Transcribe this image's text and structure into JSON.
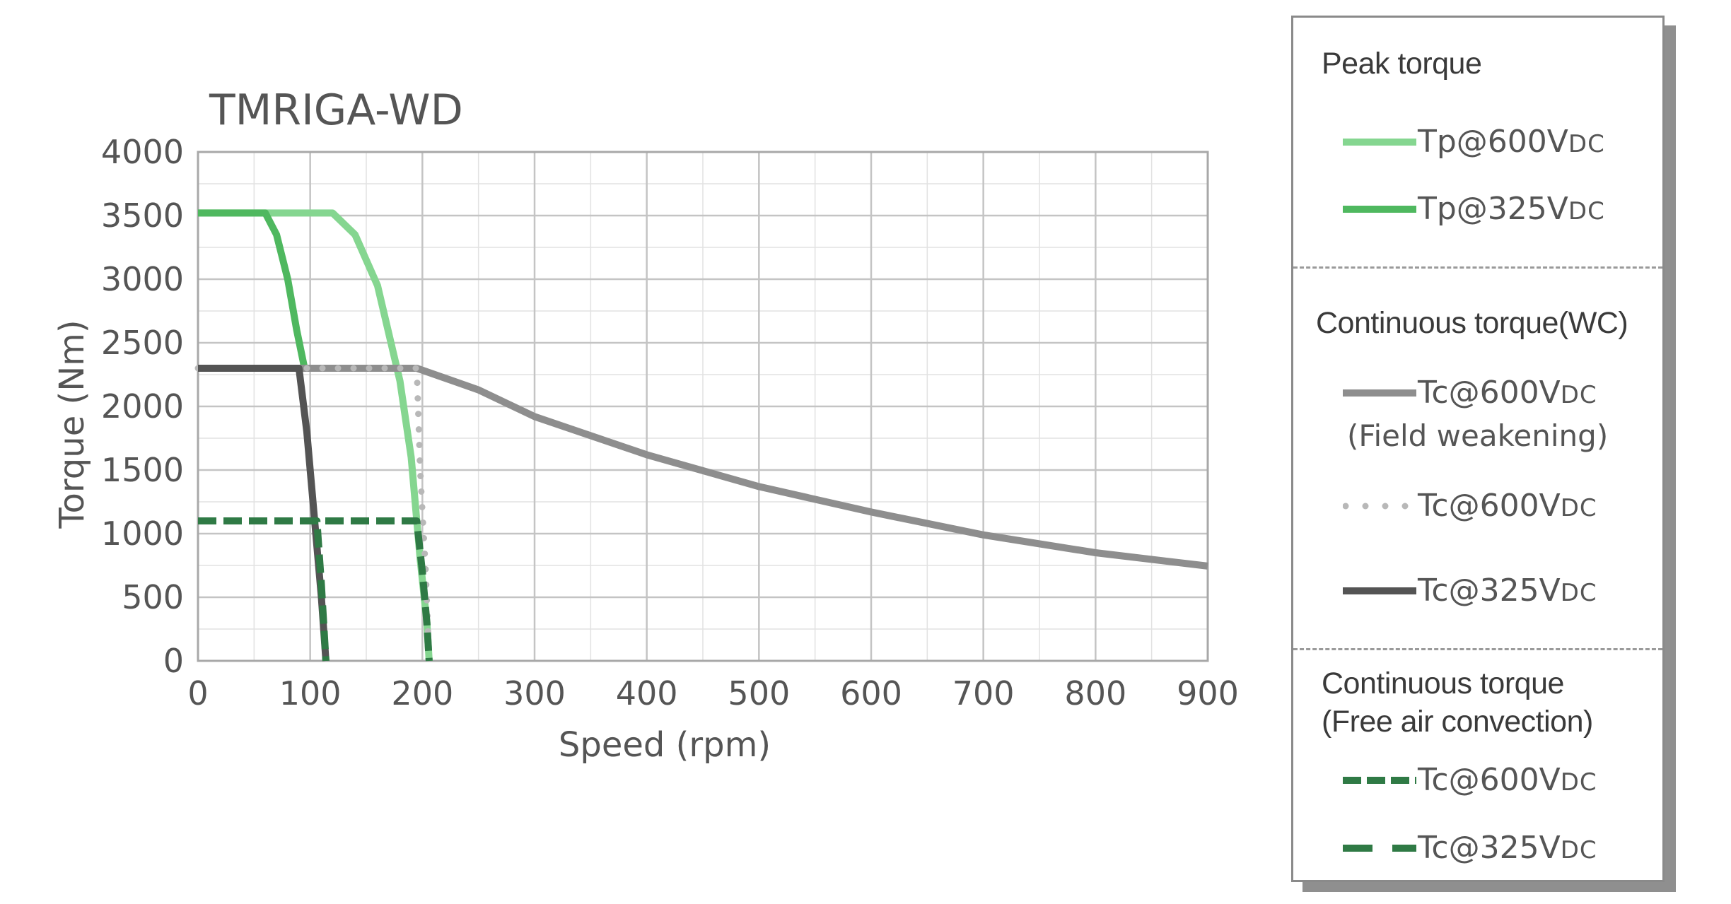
{
  "chart_data": {
    "type": "line",
    "title": "TMRIGA-WD",
    "xlabel": "Speed (rpm)",
    "ylabel": "Torque (Nm)",
    "xlim": [
      0,
      900
    ],
    "ylim": [
      0,
      4000
    ],
    "xticks": [
      0,
      100,
      200,
      300,
      400,
      500,
      600,
      700,
      800,
      900
    ],
    "yticks": [
      0,
      500,
      1000,
      1500,
      2000,
      2500,
      3000,
      3500,
      4000
    ],
    "grid": true,
    "legend_position": "right",
    "series": [
      {
        "id": "tp600",
        "color": "#85d690",
        "style": "solid",
        "points": [
          [
            0,
            3520
          ],
          [
            120,
            3520
          ],
          [
            140,
            3350
          ],
          [
            160,
            2950
          ],
          [
            180,
            2200
          ],
          [
            190,
            1600
          ],
          [
            198,
            800
          ],
          [
            204,
            300
          ],
          [
            206,
            0
          ]
        ]
      },
      {
        "id": "tp325",
        "color": "#4fb85f",
        "style": "solid",
        "points": [
          [
            0,
            3520
          ],
          [
            60,
            3520
          ],
          [
            70,
            3350
          ],
          [
            80,
            3000
          ],
          [
            88,
            2600
          ],
          [
            95,
            2300
          ]
        ]
      },
      {
        "id": "tc600_fw",
        "color": "#8e8e8e",
        "style": "solid",
        "points": [
          [
            0,
            2300
          ],
          [
            195,
            2300
          ],
          [
            250,
            2130
          ],
          [
            300,
            1920
          ],
          [
            400,
            1620
          ],
          [
            500,
            1370
          ],
          [
            600,
            1170
          ],
          [
            700,
            990
          ],
          [
            800,
            850
          ],
          [
            900,
            745
          ]
        ]
      },
      {
        "id": "tc600",
        "color": "#b8b8b8",
        "style": "dotted",
        "points": [
          [
            0,
            2300
          ],
          [
            195,
            2300
          ],
          [
            198,
            1500
          ],
          [
            203,
            700
          ],
          [
            206,
            0
          ]
        ]
      },
      {
        "id": "tc325",
        "color": "#545454",
        "style": "solid",
        "points": [
          [
            0,
            2300
          ],
          [
            90,
            2300
          ],
          [
            97,
            1800
          ],
          [
            104,
            1100
          ],
          [
            110,
            500
          ],
          [
            114,
            0
          ]
        ]
      },
      {
        "id": "tc600_air",
        "color": "#2f7a45",
        "style": "dashed",
        "points": [
          [
            0,
            1100
          ],
          [
            195,
            1100
          ],
          [
            200,
            700
          ],
          [
            204,
            300
          ],
          [
            206,
            0
          ]
        ]
      },
      {
        "id": "tc325_air",
        "color": "#2f7a45",
        "style": "dashed",
        "points": [
          [
            0,
            1100
          ],
          [
            106,
            1100
          ],
          [
            110,
            600
          ],
          [
            114,
            0
          ]
        ]
      }
    ]
  },
  "legend": {
    "peak_heading": "Peak torque",
    "peak_items": [
      {
        "main": "Tp@600V",
        "sub": "DC",
        "color": "#85d690",
        "style": "solid"
      },
      {
        "main": "Tp@325V",
        "sub": "DC",
        "color": "#4fb85f",
        "style": "solid"
      }
    ],
    "wc_heading": "Continuous torque(WC)",
    "wc_items": [
      {
        "main": "Tc@600V",
        "sub": "DC",
        "note": "(Field weakening)",
        "color": "#8e8e8e",
        "style": "solid"
      },
      {
        "main": "Tc@600V",
        "sub": "DC",
        "color": "#b8b8b8",
        "style": "dotted"
      },
      {
        "main": "Tc@325V",
        "sub": "DC",
        "color": "#545454",
        "style": "solid"
      }
    ],
    "air_heading_1": "Continuous torque",
    "air_heading_2": "(Free air convection)",
    "air_items": [
      {
        "main": "Tc@600V",
        "sub": "DC",
        "color": "#2f7a45",
        "style": "dashed"
      },
      {
        "main": "Tc@325V",
        "sub": "DC",
        "color": "#2f7a45",
        "style": "dashed-wide"
      }
    ]
  }
}
